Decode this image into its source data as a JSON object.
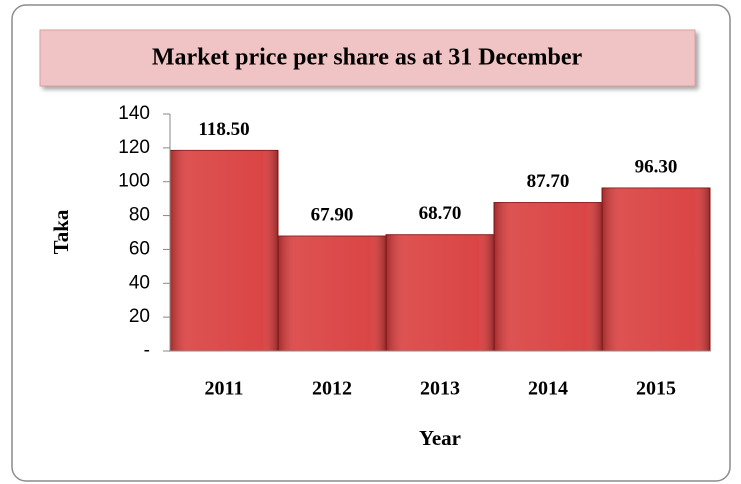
{
  "chart_data": {
    "type": "bar",
    "title": "Market price per share as at 31 December",
    "x_label": "Year",
    "y_label": "Taka",
    "categories": [
      "2011",
      "2012",
      "2013",
      "2014",
      "2015"
    ],
    "values": [
      118.5,
      67.9,
      68.7,
      87.7,
      96.3
    ],
    "value_labels": [
      "118.50",
      "67.90",
      "68.70",
      "87.70",
      "96.30"
    ],
    "color": "#d93b3b",
    "ylim": [
      0,
      140
    ],
    "yticks": [
      {
        "value": 0,
        "label": "-"
      },
      20,
      40,
      60,
      80,
      100,
      120,
      140
    ],
    "grid": false
  }
}
